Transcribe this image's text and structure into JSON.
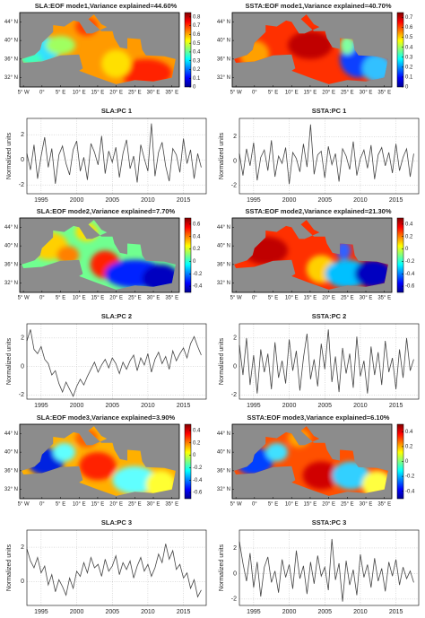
{
  "chart_data": [
    {
      "type": "map",
      "title": "SLA:EOF mode1,Variance explained=44.60%",
      "colormap": "jet",
      "clim": [
        0,
        0.85
      ],
      "cticks": [
        0,
        0.1,
        0.2,
        0.3,
        0.4,
        0.5,
        0.6,
        0.7,
        0.8
      ],
      "xlim": [
        -6,
        37
      ],
      "ylim": [
        30,
        46
      ],
      "xticks": [
        {
          "value": -5,
          "label": "5° W"
        },
        {
          "value": 0,
          "label": "0°"
        },
        {
          "value": 5,
          "label": "5° E"
        },
        {
          "value": 10,
          "label": "10° E"
        },
        {
          "value": 15,
          "label": "15° E"
        },
        {
          "value": 20,
          "label": "20° E"
        },
        {
          "value": 25,
          "label": "25° E"
        },
        {
          "value": 30,
          "label": "30° E"
        },
        {
          "value": 35,
          "label": "35° E"
        }
      ],
      "yticks": [
        {
          "value": 32,
          "label": "32° N"
        },
        {
          "value": 36,
          "label": "36° N"
        },
        {
          "value": 40,
          "label": "40° N"
        },
        {
          "value": 44,
          "label": "44° N"
        }
      ]
    },
    {
      "type": "map",
      "title": "SSTA:EOF mode1,Variance explained=40.70%",
      "colormap": "jet",
      "clim": [
        0,
        0.75
      ],
      "cticks": [
        0,
        0.1,
        0.2,
        0.3,
        0.4,
        0.5,
        0.6,
        0.7
      ],
      "xlim": [
        -6,
        37
      ],
      "ylim": [
        30,
        46
      ],
      "xticks": [
        {
          "value": -5,
          "label": "5° W"
        },
        {
          "value": 0,
          "label": "0°"
        },
        {
          "value": 5,
          "label": "5° E"
        },
        {
          "value": 10,
          "label": "10° E"
        },
        {
          "value": 15,
          "label": "15° E"
        },
        {
          "value": 20,
          "label": "20° E"
        },
        {
          "value": 25,
          "label": "25° E"
        },
        {
          "value": 30,
          "label": "30° E"
        },
        {
          "value": 35,
          "label": "35° E"
        }
      ],
      "yticks": [
        {
          "value": 32,
          "label": "32° N"
        },
        {
          "value": 36,
          "label": "36° N"
        },
        {
          "value": 40,
          "label": "40° N"
        },
        {
          "value": 44,
          "label": "44° N"
        }
      ]
    },
    {
      "type": "line",
      "title": "SLA:PC 1",
      "ylabel": "Normalized units",
      "color": "#444444",
      "grid": true,
      "x": [
        1993,
        1993.5,
        1994,
        1994.5,
        1995,
        1995.5,
        1996,
        1996.5,
        1997,
        1997.5,
        1998,
        1998.5,
        1999,
        1999.5,
        2000,
        2000.5,
        2001,
        2001.5,
        2002,
        2002.5,
        2003,
        2003.5,
        2004,
        2004.5,
        2005,
        2005.5,
        2006,
        2006.5,
        2007,
        2007.5,
        2008,
        2008.5,
        2009,
        2009.5,
        2010,
        2010.5,
        2011,
        2011.5,
        2012,
        2012.5,
        2013,
        2013.5,
        2014,
        2014.5,
        2015,
        2015.5,
        2016,
        2016.5,
        2017,
        2017.5
      ],
      "values": [
        0.5,
        -0.8,
        1.2,
        -1.5,
        0.3,
        1.8,
        -0.6,
        0.9,
        -1.9,
        0.4,
        1.1,
        -0.3,
        -1.2,
        0.8,
        1.5,
        -0.9,
        0.2,
        -1.6,
        1.3,
        0.6,
        -0.4,
        1.9,
        -1.1,
        0.7,
        -0.2,
        1.0,
        -1.4,
        0.5,
        1.6,
        -0.7,
        0.3,
        -1.8,
        1.2,
        0.1,
        -0.9,
        2.9,
        -1.3,
        0.6,
        1.4,
        -0.5,
        -1.7,
        0.9,
        0.4,
        -1.0,
        1.7,
        -0.3,
        0.8,
        -1.5,
        0.5,
        -0.6
      ],
      "xlim": [
        1993,
        2018.2
      ],
      "ylim": [
        -2.7,
        3.3
      ],
      "xticks": [
        1995,
        2000,
        2005,
        2010,
        2015
      ],
      "yticks": [
        -2,
        0,
        2
      ]
    },
    {
      "type": "line",
      "title": "SSTA:PC 1",
      "ylabel": "Normalized units",
      "color": "#444444",
      "grid": true,
      "x": [
        1993,
        1993.5,
        1994,
        1994.5,
        1995,
        1995.5,
        1996,
        1996.5,
        1997,
        1997.5,
        1998,
        1998.5,
        1999,
        1999.5,
        2000,
        2000.5,
        2001,
        2001.5,
        2002,
        2002.5,
        2003,
        2003.5,
        2004,
        2004.5,
        2005,
        2005.5,
        2006,
        2006.5,
        2007,
        2007.5,
        2008,
        2008.5,
        2009,
        2009.5,
        2010,
        2010.5,
        2011,
        2011.5,
        2012,
        2012.5,
        2013,
        2013.5,
        2014,
        2014.5,
        2015,
        2015.5,
        2016,
        2016.5,
        2017,
        2017.5
      ],
      "values": [
        0.6,
        -1.2,
        1.0,
        -0.4,
        1.5,
        -1.6,
        0.3,
        0.9,
        -0.8,
        1.7,
        -1.3,
        0.4,
        -0.2,
        1.1,
        -1.9,
        0.7,
        0.2,
        -0.9,
        1.4,
        -0.5,
        3.0,
        -1.1,
        0.5,
        0.8,
        -1.4,
        1.2,
        -0.3,
        0.6,
        -1.7,
        1.0,
        0.4,
        -0.7,
        1.6,
        -1.2,
        0.2,
        0.9,
        -0.6,
        1.3,
        -1.5,
        0.5,
        1.1,
        -0.4,
        0.7,
        -1.0,
        1.4,
        -0.8,
        0.3,
        1.0,
        -1.3,
        0.6
      ],
      "xlim": [
        1993,
        2018.2
      ],
      "ylim": [
        -2.7,
        3.5
      ],
      "xticks": [
        1995,
        2000,
        2005,
        2010,
        2015
      ],
      "yticks": [
        -2,
        0,
        2
      ]
    },
    {
      "type": "map",
      "title": "SLA:EOF mode2,Variance explained=7.70%",
      "colormap": "jet",
      "clim": [
        -0.5,
        0.7
      ],
      "cticks": [
        -0.4,
        -0.2,
        0,
        0.2,
        0.4,
        0.6
      ],
      "xlim": [
        -6,
        37
      ],
      "ylim": [
        30,
        46
      ],
      "xticks": [
        {
          "value": -5,
          "label": "5° W"
        },
        {
          "value": 0,
          "label": "0°"
        },
        {
          "value": 5,
          "label": "5° E"
        },
        {
          "value": 10,
          "label": "10° E"
        },
        {
          "value": 15,
          "label": "15° E"
        },
        {
          "value": 20,
          "label": "20° E"
        },
        {
          "value": 25,
          "label": "25° E"
        },
        {
          "value": 30,
          "label": "30° E"
        },
        {
          "value": 35,
          "label": "35° E"
        }
      ],
      "yticks": [
        {
          "value": 32,
          "label": "32° N"
        },
        {
          "value": 36,
          "label": "36° N"
        },
        {
          "value": 40,
          "label": "40° N"
        },
        {
          "value": 44,
          "label": "44° N"
        }
      ]
    },
    {
      "type": "map",
      "title": "SSTA:EOF mode2,Variance explained=21.30%",
      "colormap": "jet",
      "clim": [
        -0.7,
        0.5
      ],
      "cticks": [
        -0.6,
        -0.4,
        -0.2,
        0,
        0.2,
        0.4
      ],
      "xlim": [
        -6,
        37
      ],
      "ylim": [
        30,
        46
      ],
      "xticks": [
        {
          "value": -5,
          "label": "5° W"
        },
        {
          "value": 0,
          "label": "0°"
        },
        {
          "value": 5,
          "label": "5° E"
        },
        {
          "value": 10,
          "label": "10° E"
        },
        {
          "value": 15,
          "label": "15° E"
        },
        {
          "value": 20,
          "label": "20° E"
        },
        {
          "value": 25,
          "label": "25° E"
        },
        {
          "value": 30,
          "label": "30° E"
        },
        {
          "value": 35,
          "label": "35° E"
        }
      ],
      "yticks": [
        {
          "value": 32,
          "label": "32° N"
        },
        {
          "value": 36,
          "label": "36° N"
        },
        {
          "value": 40,
          "label": "40° N"
        },
        {
          "value": 44,
          "label": "44° N"
        }
      ]
    },
    {
      "type": "line",
      "title": "SLA:PC 2",
      "ylabel": "Normalized units",
      "color": "#444444",
      "grid": true,
      "x": [
        1993,
        1993.5,
        1994,
        1994.5,
        1995,
        1995.5,
        1996,
        1996.5,
        1997,
        1997.5,
        1998,
        1998.5,
        1999,
        1999.5,
        2000,
        2000.5,
        2001,
        2001.5,
        2002,
        2002.5,
        2003,
        2003.5,
        2004,
        2004.5,
        2005,
        2005.5,
        2006,
        2006.5,
        2007,
        2007.5,
        2008,
        2008.5,
        2009,
        2009.5,
        2010,
        2010.5,
        2011,
        2011.5,
        2012,
        2012.5,
        2013,
        2013.5,
        2014,
        2014.5,
        2015,
        2015.5,
        2016,
        2016.5,
        2017,
        2017.5
      ],
      "values": [
        1.8,
        2.6,
        1.2,
        0.9,
        1.4,
        0.5,
        0.2,
        -0.6,
        -0.3,
        -1.2,
        -1.8,
        -1.1,
        -1.6,
        -2.1,
        -1.4,
        -0.9,
        -1.3,
        -0.7,
        -0.2,
        0.3,
        -0.4,
        0.1,
        0.5,
        -0.1,
        0.6,
        0.2,
        -0.5,
        0.3,
        -0.2,
        0.4,
        0.8,
        -0.3,
        0.6,
        0.1,
        0.9,
        -0.4,
        0.5,
        1.0,
        0.2,
        0.7,
        -0.2,
        1.1,
        0.4,
        0.9,
        1.3,
        0.6,
        1.6,
        2.1,
        1.4,
        0.8
      ],
      "xlim": [
        1993,
        2018.2
      ],
      "ylim": [
        -2.3,
        3
      ],
      "xticks": [
        1995,
        2000,
        2005,
        2010,
        2015
      ],
      "yticks": [
        -2,
        0,
        2
      ]
    },
    {
      "type": "line",
      "title": "SSTA:PC 2",
      "ylabel": "Normalized units",
      "color": "#444444",
      "grid": true,
      "x": [
        1993,
        1993.5,
        1994,
        1994.5,
        1995,
        1995.5,
        1996,
        1996.5,
        1997,
        1997.5,
        1998,
        1998.5,
        1999,
        1999.5,
        2000,
        2000.5,
        2001,
        2001.5,
        2002,
        2002.5,
        2003,
        2003.5,
        2004,
        2004.5,
        2005,
        2005.5,
        2006,
        2006.5,
        2007,
        2007.5,
        2008,
        2008.5,
        2009,
        2009.5,
        2010,
        2010.5,
        2011,
        2011.5,
        2012,
        2012.5,
        2013,
        2013.5,
        2014,
        2014.5,
        2015,
        2015.5,
        2016,
        2016.5,
        2017,
        2017.5
      ],
      "values": [
        1.5,
        -0.6,
        2.0,
        -1.3,
        0.8,
        -1.9,
        1.2,
        -0.4,
        0.9,
        -1.6,
        1.7,
        -0.8,
        0.4,
        -1.2,
        1.9,
        -0.3,
        1.1,
        -1.7,
        0.6,
        2.3,
        -0.9,
        0.5,
        -1.4,
        1.6,
        -0.2,
        2.6,
        -1.1,
        0.7,
        -1.8,
        1.3,
        -0.5,
        0.9,
        -1.5,
        2.1,
        -0.7,
        0.4,
        -1.9,
        1.4,
        -0.6,
        1.0,
        -1.3,
        1.8,
        -0.4,
        0.6,
        -1.6,
        1.2,
        -0.8,
        2.0,
        -0.3,
        0.5
      ],
      "xlim": [
        1993,
        2018.2
      ],
      "ylim": [
        -2.3,
        3
      ],
      "xticks": [
        1995,
        2000,
        2005,
        2010,
        2015
      ],
      "yticks": [
        -2,
        0,
        2
      ]
    },
    {
      "type": "map",
      "title": "SLA:EOF mode3,Variance explained=3.90%",
      "colormap": "jet",
      "clim": [
        -0.7,
        0.5
      ],
      "cticks": [
        -0.6,
        -0.4,
        -0.2,
        0,
        0.2,
        0.4
      ],
      "xlim": [
        -6,
        37
      ],
      "ylim": [
        30,
        46
      ],
      "xticks": [
        {
          "value": -5,
          "label": "5° W"
        },
        {
          "value": 0,
          "label": "0°"
        },
        {
          "value": 5,
          "label": "5° E"
        },
        {
          "value": 10,
          "label": "10° E"
        },
        {
          "value": 15,
          "label": "15° E"
        },
        {
          "value": 20,
          "label": "20° E"
        },
        {
          "value": 25,
          "label": "25° E"
        },
        {
          "value": 30,
          "label": "30° E"
        },
        {
          "value": 35,
          "label": "35° E"
        }
      ],
      "yticks": [
        {
          "value": 32,
          "label": "32° N"
        },
        {
          "value": 36,
          "label": "36° N"
        },
        {
          "value": 40,
          "label": "40° N"
        },
        {
          "value": 44,
          "label": "44° N"
        }
      ]
    },
    {
      "type": "map",
      "title": "SSTA:EOF mode3,Variance explained=6.10%",
      "colormap": "jet",
      "clim": [
        -0.5,
        0.5
      ],
      "cticks": [
        -0.4,
        -0.2,
        0,
        0.2,
        0.4
      ],
      "xlim": [
        -6,
        37
      ],
      "ylim": [
        30,
        46
      ],
      "xticks": [
        {
          "value": -5,
          "label": "5° W"
        },
        {
          "value": 0,
          "label": "0°"
        },
        {
          "value": 5,
          "label": "5° E"
        },
        {
          "value": 10,
          "label": "10° E"
        },
        {
          "value": 15,
          "label": "15° E"
        },
        {
          "value": 20,
          "label": "20° E"
        },
        {
          "value": 25,
          "label": "25° E"
        },
        {
          "value": 30,
          "label": "30° E"
        },
        {
          "value": 35,
          "label": "35° E"
        }
      ],
      "yticks": [
        {
          "value": 32,
          "label": "32° N"
        },
        {
          "value": 36,
          "label": "36° N"
        },
        {
          "value": 40,
          "label": "40° N"
        },
        {
          "value": 44,
          "label": "44° N"
        }
      ]
    },
    {
      "type": "line",
      "title": "SLA:PC 3",
      "ylabel": "Normalized units",
      "color": "#444444",
      "grid": true,
      "x": [
        1993,
        1993.5,
        1994,
        1994.5,
        1995,
        1995.5,
        1996,
        1996.5,
        1997,
        1997.5,
        1998,
        1998.5,
        1999,
        1999.5,
        2000,
        2000.5,
        2001,
        2001.5,
        2002,
        2002.5,
        2003,
        2003.5,
        2004,
        2004.5,
        2005,
        2005.5,
        2006,
        2006.5,
        2007,
        2007.5,
        2008,
        2008.5,
        2009,
        2009.5,
        2010,
        2010.5,
        2011,
        2011.5,
        2012,
        2012.5,
        2013,
        2013.5,
        2014,
        2014.5,
        2015,
        2015.5,
        2016,
        2016.5,
        2017,
        2017.5
      ],
      "values": [
        1.9,
        1.2,
        0.8,
        1.4,
        0.5,
        0.9,
        -0.2,
        0.4,
        -0.6,
        0.1,
        -0.3,
        -0.8,
        0.2,
        -0.4,
        0.6,
        0.3,
        1.1,
        0.5,
        1.4,
        0.8,
        1.0,
        0.3,
        1.3,
        0.6,
        0.9,
        1.5,
        0.4,
        1.1,
        0.7,
        1.2,
        0.2,
        0.9,
        1.4,
        0.6,
        1.0,
        0.3,
        0.8,
        1.6,
        1.1,
        2.2,
        1.3,
        1.8,
        0.7,
        1.0,
        0.2,
        0.5,
        -0.4,
        0.1,
        -0.9,
        -0.5
      ],
      "xlim": [
        1993,
        2018.2
      ],
      "ylim": [
        -1.4,
        3
      ],
      "xticks": [
        1995,
        2000,
        2005,
        2010,
        2015
      ],
      "yticks": [
        0,
        2
      ]
    },
    {
      "type": "line",
      "title": "SSTA:PC 3",
      "ylabel": "Normalized units",
      "color": "#444444",
      "grid": true,
      "x": [
        1993,
        1993.5,
        1994,
        1994.5,
        1995,
        1995.5,
        1996,
        1996.5,
        1997,
        1997.5,
        1998,
        1998.5,
        1999,
        1999.5,
        2000,
        2000.5,
        2001,
        2001.5,
        2002,
        2002.5,
        2003,
        2003.5,
        2004,
        2004.5,
        2005,
        2005.5,
        2006,
        2006.5,
        2007,
        2007.5,
        2008,
        2008.5,
        2009,
        2009.5,
        2010,
        2010.5,
        2011,
        2011.5,
        2012,
        2012.5,
        2013,
        2013.5,
        2014,
        2014.5,
        2015,
        2015.5,
        2016,
        2016.5,
        2017,
        2017.5
      ],
      "values": [
        2.5,
        0.8,
        -0.6,
        1.6,
        -1.1,
        0.9,
        -1.8,
        0.5,
        1.3,
        -0.7,
        0.2,
        -1.5,
        1.1,
        -0.3,
        0.7,
        -1.2,
        1.8,
        -0.4,
        0.6,
        -1.6,
        0.9,
        -0.8,
        1.4,
        -0.2,
        0.5,
        -1.3,
        2.7,
        -0.5,
        0.8,
        -2.2,
        1.0,
        -0.9,
        0.3,
        -1.7,
        1.5,
        -0.3,
        0.7,
        -1.1,
        1.2,
        -0.6,
        0.4,
        -1.4,
        0.9,
        -0.2,
        1.1,
        -0.9,
        0.5,
        -0.4,
        0.2,
        -0.7
      ],
      "xlim": [
        1993,
        2018.2
      ],
      "ylim": [
        -2.5,
        3.4
      ],
      "xticks": [
        1995,
        2000,
        2005,
        2010,
        2015
      ],
      "yticks": [
        -2,
        0,
        2
      ]
    }
  ]
}
